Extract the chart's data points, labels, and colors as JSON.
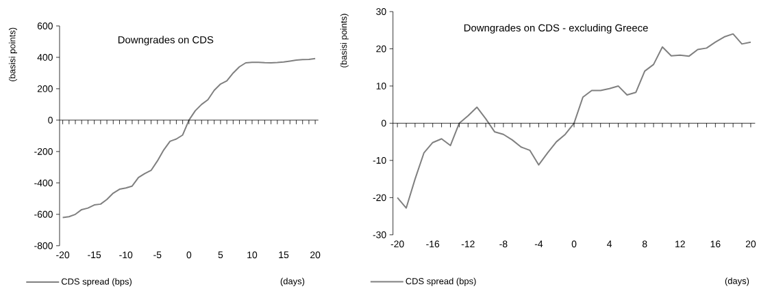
{
  "chart_data": [
    {
      "type": "line",
      "title": "Downgrades on CDS",
      "ylabel": "(basisi points)",
      "xlabel": "(days)",
      "legend": "bottom left",
      "marker": "none",
      "x": [
        -20,
        -19,
        -18,
        -17,
        -16,
        -15,
        -14,
        -13,
        -12,
        -11,
        -10,
        -9,
        -8,
        -7,
        -6,
        -5,
        -4,
        -3,
        -2,
        -1,
        0,
        1,
        2,
        3,
        4,
        5,
        6,
        7,
        8,
        9,
        10,
        11,
        12,
        13,
        14,
        15,
        16,
        17,
        18,
        19,
        20
      ],
      "series": [
        {
          "name": "CDS spread (bps)",
          "color": "#7f7f7f",
          "values": [
            -620,
            -615,
            -600,
            -570,
            -560,
            -540,
            -535,
            -505,
            -465,
            -440,
            -432,
            -420,
            -365,
            -340,
            -320,
            -260,
            -190,
            -135,
            -120,
            -95,
            0,
            60,
            100,
            130,
            190,
            230,
            250,
            300,
            340,
            365,
            368,
            368,
            366,
            365,
            367,
            370,
            376,
            382,
            386,
            387,
            392
          ]
        }
      ],
      "xlim": [
        -20.5,
        20.5
      ],
      "ylim": [
        -800,
        600
      ],
      "xticks": [
        -20,
        -15,
        -10,
        -5,
        0,
        5,
        10,
        15,
        20
      ],
      "yticks": [
        -800,
        -600,
        -400,
        -200,
        0,
        200,
        400,
        600
      ]
    },
    {
      "type": "line",
      "title": "Downgrades on CDS - excluding Greece",
      "ylabel": "(basisi points)",
      "xlabel": "(days)",
      "legend": "bottom left",
      "marker": "none",
      "x": [
        -20,
        -19,
        -18,
        -17,
        -16,
        -15,
        -14,
        -13,
        -12,
        -11,
        -10,
        -9,
        -8,
        -7,
        -6,
        -5,
        -4,
        -3,
        -2,
        -1,
        0,
        1,
        2,
        3,
        4,
        5,
        6,
        7,
        8,
        9,
        10,
        11,
        12,
        13,
        14,
        15,
        16,
        17,
        18,
        19,
        20
      ],
      "series": [
        {
          "name": "CDS spread (bps)",
          "color": "#7f7f7f",
          "values": [
            -20,
            -22.8,
            -15,
            -8,
            -5.2,
            -4.2,
            -6,
            0,
            2,
            4.3,
            1.2,
            -2.3,
            -3,
            -4.5,
            -6.4,
            -7.3,
            -11.2,
            -8,
            -5,
            -3,
            0,
            7,
            8.8,
            8.8,
            9.3,
            10,
            7.6,
            8.3,
            14,
            15.8,
            20.5,
            18.1,
            18.3,
            18,
            19.8,
            20.2,
            21.8,
            23.2,
            24,
            21.3,
            21.8
          ]
        }
      ],
      "xlim": [
        -20.5,
        20.5
      ],
      "ylim": [
        -30,
        30
      ],
      "xticks": [
        -20,
        -16,
        -12,
        -8,
        -4,
        0,
        4,
        8,
        12,
        16,
        20
      ],
      "yticks": [
        -30,
        -20,
        -10,
        0,
        10,
        20,
        30
      ]
    }
  ]
}
